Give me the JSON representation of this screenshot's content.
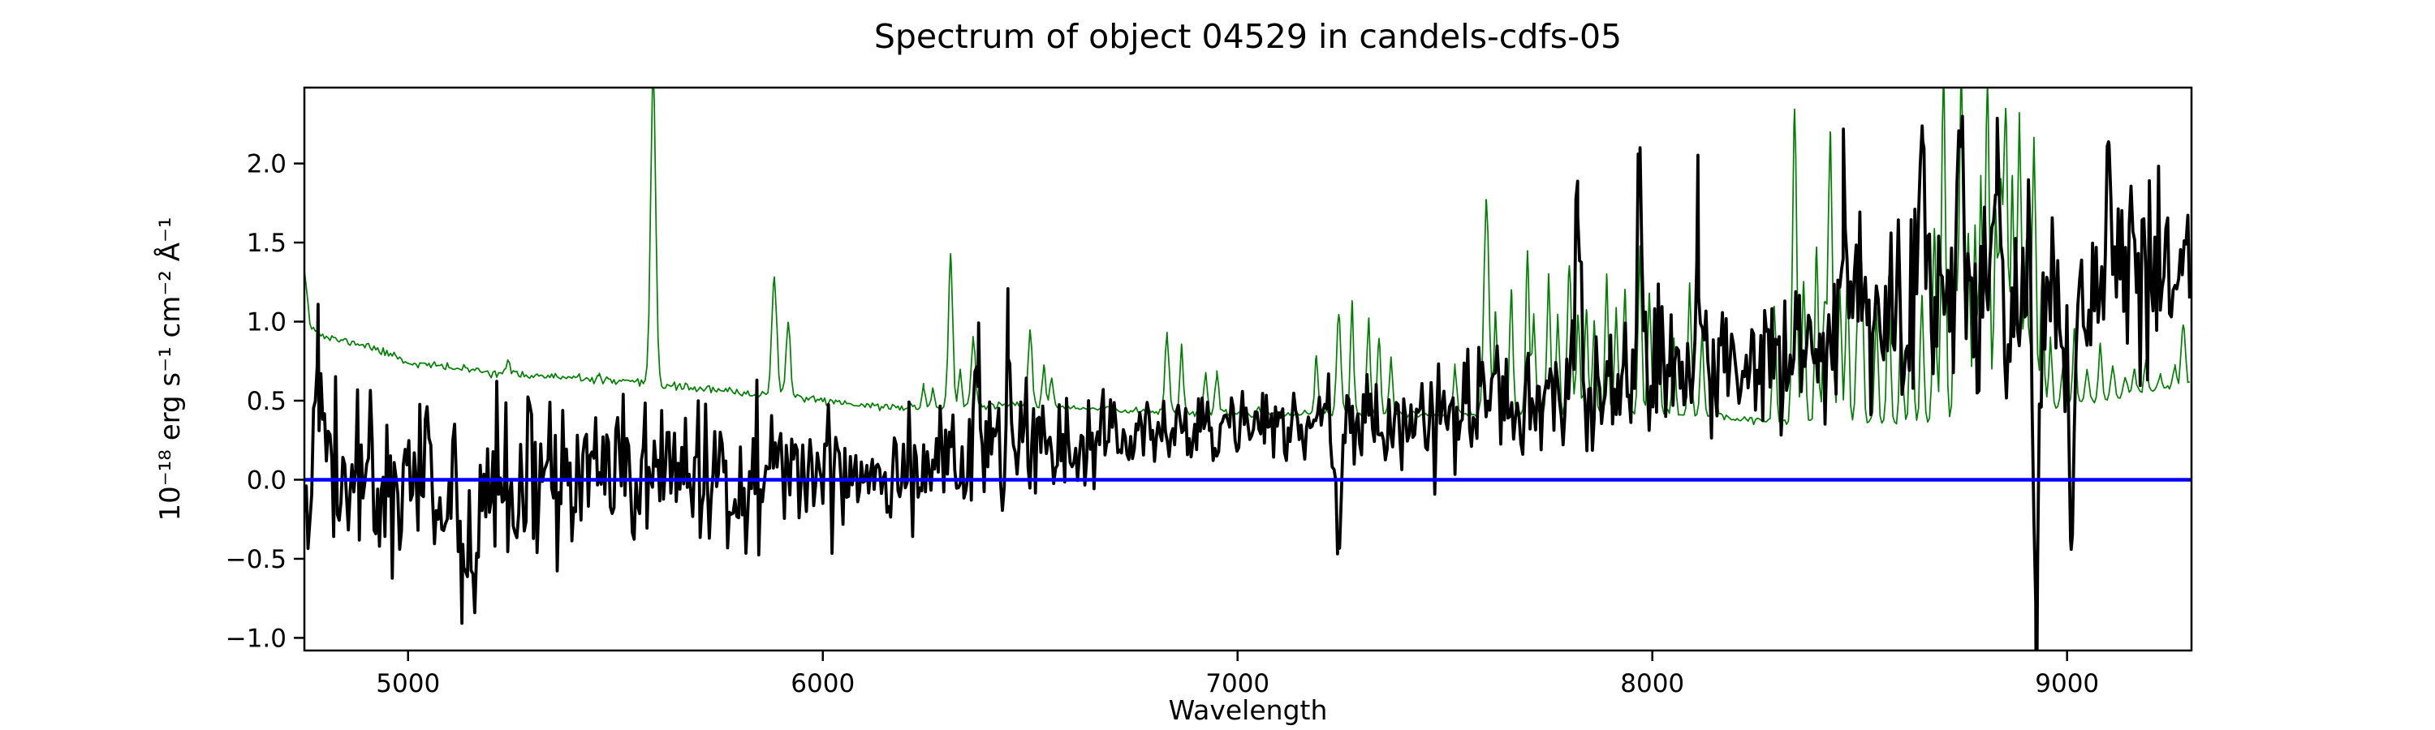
{
  "chart_data": {
    "type": "line",
    "title": "Spectrum of object 04529 in candels-cdfs-05",
    "xlabel": "Wavelength",
    "ylabel": "10⁻¹⁸ erg s⁻¹ cm⁻² Å⁻¹",
    "xlim": [
      4750,
      9300
    ],
    "ylim": [
      -1.08,
      2.48
    ],
    "xticks": [
      5000,
      6000,
      7000,
      8000,
      9000
    ],
    "yticks": [
      -1.0,
      -0.5,
      0.0,
      0.5,
      1.0,
      1.5,
      2.0
    ],
    "grid": false,
    "legend": null,
    "axis_color": "#000000",
    "series": [
      {
        "name": "zero-level",
        "type": "hline",
        "y": 0.0,
        "color": "#0000ff",
        "linewidth": 4.5
      },
      {
        "name": "error-spectrum",
        "type": "noisy-line",
        "color": "#008000",
        "linewidth": 1.7,
        "noise_seed": 11,
        "noise_amp": 0.012,
        "baseline": [
          [
            4750,
            1.34
          ],
          [
            4765,
            0.97
          ],
          [
            4800,
            0.9
          ],
          [
            4900,
            0.85
          ],
          [
            5000,
            0.74
          ],
          [
            5100,
            0.71
          ],
          [
            5200,
            0.68
          ],
          [
            5350,
            0.65
          ],
          [
            5500,
            0.62
          ],
          [
            5650,
            0.59
          ],
          [
            5800,
            0.55
          ],
          [
            5950,
            0.52
          ],
          [
            6100,
            0.47
          ],
          [
            6250,
            0.45
          ],
          [
            6400,
            0.47
          ],
          [
            6550,
            0.46
          ],
          [
            6700,
            0.44
          ],
          [
            6850,
            0.43
          ],
          [
            7000,
            0.42
          ],
          [
            7200,
            0.42
          ],
          [
            7400,
            0.41
          ],
          [
            7600,
            0.41
          ],
          [
            7800,
            0.42
          ],
          [
            8000,
            0.42
          ],
          [
            8150,
            0.4
          ],
          [
            8300,
            0.37
          ],
          [
            8500,
            0.36
          ],
          [
            8700,
            0.37
          ],
          [
            8900,
            0.4
          ],
          [
            9000,
            0.48
          ],
          [
            9100,
            0.52
          ],
          [
            9300,
            0.6
          ]
        ],
        "peaks": [
          [
            4969,
            0.8,
            5
          ],
          [
            5240,
            0.74,
            5
          ],
          [
            5460,
            0.66,
            5
          ],
          [
            5591,
            2.6,
            6
          ],
          [
            5883,
            1.28,
            6
          ],
          [
            5917,
            1.0,
            5
          ],
          [
            6243,
            0.6,
            4
          ],
          [
            6266,
            0.58,
            4
          ],
          [
            6308,
            1.42,
            5
          ],
          [
            6331,
            0.7,
            4
          ],
          [
            6363,
            0.9,
            5
          ],
          [
            6500,
            0.95,
            5
          ],
          [
            6533,
            0.72,
            4
          ],
          [
            6552,
            0.65,
            4
          ],
          [
            6830,
            0.92,
            5
          ],
          [
            6865,
            0.85,
            4
          ],
          [
            6923,
            0.68,
            4
          ],
          [
            6950,
            0.66,
            4
          ],
          [
            7190,
            0.78,
            4
          ],
          [
            7244,
            1.05,
            5
          ],
          [
            7276,
            1.12,
            4
          ],
          [
            7316,
            1.02,
            4
          ],
          [
            7341,
            0.9,
            4
          ],
          [
            7370,
            0.76,
            4
          ],
          [
            7524,
            0.72,
            4
          ],
          [
            7600,
            1.78,
            6
          ],
          [
            7622,
            1.05,
            4
          ],
          [
            7660,
            1.2,
            4
          ],
          [
            7699,
            1.42,
            4
          ],
          [
            7714,
            1.05,
            4
          ],
          [
            7750,
            1.3,
            4
          ],
          [
            7772,
            1.05,
            4
          ],
          [
            7800,
            1.35,
            5
          ],
          [
            7821,
            1.05,
            4
          ],
          [
            7841,
            1.08,
            4
          ],
          [
            7860,
            1.02,
            4
          ],
          [
            7890,
            1.3,
            4
          ],
          [
            7913,
            1.08,
            4
          ],
          [
            7934,
            1.2,
            4
          ],
          [
            7970,
            1.48,
            4
          ],
          [
            7993,
            1.18,
            4
          ],
          [
            8014,
            1.05,
            4
          ],
          [
            8052,
            0.88,
            4
          ],
          [
            8090,
            1.25,
            4
          ],
          [
            8120,
            0.92,
            4
          ],
          [
            8150,
            0.78,
            4
          ],
          [
            8294,
            1.1,
            4
          ],
          [
            8343,
            2.35,
            5
          ],
          [
            8365,
            1.25,
            4
          ],
          [
            8396,
            1.48,
            4
          ],
          [
            8415,
            1.1,
            4
          ],
          [
            8429,
            2.2,
            5
          ],
          [
            8452,
            1.25,
            4
          ],
          [
            8470,
            1.3,
            4
          ],
          [
            8495,
            1.05,
            4
          ],
          [
            8505,
            1.32,
            4
          ],
          [
            8540,
            1.08,
            4
          ],
          [
            8570,
            1.28,
            4
          ],
          [
            8600,
            0.98,
            4
          ],
          [
            8625,
            1.42,
            4
          ],
          [
            8650,
            1.18,
            4
          ],
          [
            8680,
            1.6,
            4
          ],
          [
            8702,
            2.55,
            5
          ],
          [
            8730,
            1.45,
            4
          ],
          [
            8745,
            2.55,
            5
          ],
          [
            8762,
            1.55,
            4
          ],
          [
            8778,
            1.6,
            4
          ],
          [
            8792,
            1.9,
            4
          ],
          [
            8808,
            2.5,
            5
          ],
          [
            8828,
            1.7,
            4
          ],
          [
            8840,
            1.75,
            4
          ],
          [
            8852,
            2.35,
            5
          ],
          [
            8868,
            1.9,
            4
          ],
          [
            8885,
            2.3,
            5
          ],
          [
            8902,
            1.5,
            4
          ],
          [
            8920,
            2.15,
            5
          ],
          [
            8940,
            1.3,
            4
          ],
          [
            8960,
            0.9,
            4
          ],
          [
            8990,
            0.72,
            4
          ],
          [
            9018,
            0.95,
            4
          ],
          [
            9048,
            0.7,
            4
          ],
          [
            9080,
            0.85,
            4
          ],
          [
            9110,
            0.72,
            4
          ],
          [
            9140,
            0.66,
            4
          ],
          [
            9162,
            0.7,
            4
          ],
          [
            9190,
            0.75,
            4
          ],
          [
            9225,
            0.68,
            4
          ],
          [
            9260,
            0.72,
            4
          ],
          [
            9280,
            1.0,
            5
          ]
        ]
      },
      {
        "name": "object-flux",
        "type": "noisy-line",
        "color": "#000000",
        "linewidth": 3.8,
        "noise_seed": 42,
        "baseline": [
          [
            4750,
            0.03
          ],
          [
            5000,
            -0.02
          ],
          [
            5150,
            -0.08
          ],
          [
            5350,
            0.0
          ],
          [
            5600,
            0.03
          ],
          [
            5900,
            0.05
          ],
          [
            6100,
            0.08
          ],
          [
            6300,
            0.13
          ],
          [
            6500,
            0.18
          ],
          [
            6700,
            0.27
          ],
          [
            6900,
            0.32
          ],
          [
            7100,
            0.34
          ],
          [
            7300,
            0.37
          ],
          [
            7500,
            0.4
          ],
          [
            7700,
            0.46
          ],
          [
            7900,
            0.52
          ],
          [
            8100,
            0.6
          ],
          [
            8250,
            0.7
          ],
          [
            8400,
            0.92
          ],
          [
            8550,
            1.05
          ],
          [
            8700,
            1.12
          ],
          [
            8850,
            1.15
          ],
          [
            8950,
            1.02
          ],
          [
            9050,
            1.12
          ],
          [
            9150,
            1.28
          ],
          [
            9300,
            1.45
          ]
        ],
        "noise_sigma": [
          [
            4750,
            0.25
          ],
          [
            5000,
            0.29
          ],
          [
            5250,
            0.28
          ],
          [
            5500,
            0.24
          ],
          [
            5750,
            0.23
          ],
          [
            6000,
            0.21
          ],
          [
            6250,
            0.19
          ],
          [
            6500,
            0.16
          ],
          [
            6750,
            0.13
          ],
          [
            7000,
            0.12
          ],
          [
            7250,
            0.14
          ],
          [
            7500,
            0.17
          ],
          [
            7750,
            0.22
          ],
          [
            8000,
            0.25
          ],
          [
            8250,
            0.22
          ],
          [
            8500,
            0.28
          ],
          [
            8750,
            0.32
          ],
          [
            9000,
            0.3
          ],
          [
            9300,
            0.27
          ]
        ],
        "peaks": [
          [
            4783,
            1.28,
            5
          ],
          [
            5132,
            -0.78,
            6
          ],
          [
            5162,
            -0.95,
            5
          ],
          [
            6374,
            0.78,
            5
          ],
          [
            6447,
            0.75,
            5
          ],
          [
            7241,
            -0.48,
            6
          ],
          [
            7820,
            1.9,
            6
          ],
          [
            7970,
            2.15,
            6
          ],
          [
            8110,
            1.7,
            6
          ],
          [
            8460,
            1.85,
            6
          ],
          [
            8652,
            2.28,
            6
          ],
          [
            8740,
            2.2,
            6
          ],
          [
            8830,
            2.31,
            6
          ],
          [
            8926,
            -0.92,
            6
          ],
          [
            9010,
            -0.58,
            6
          ],
          [
            9100,
            2.0,
            6
          ]
        ]
      }
    ]
  }
}
